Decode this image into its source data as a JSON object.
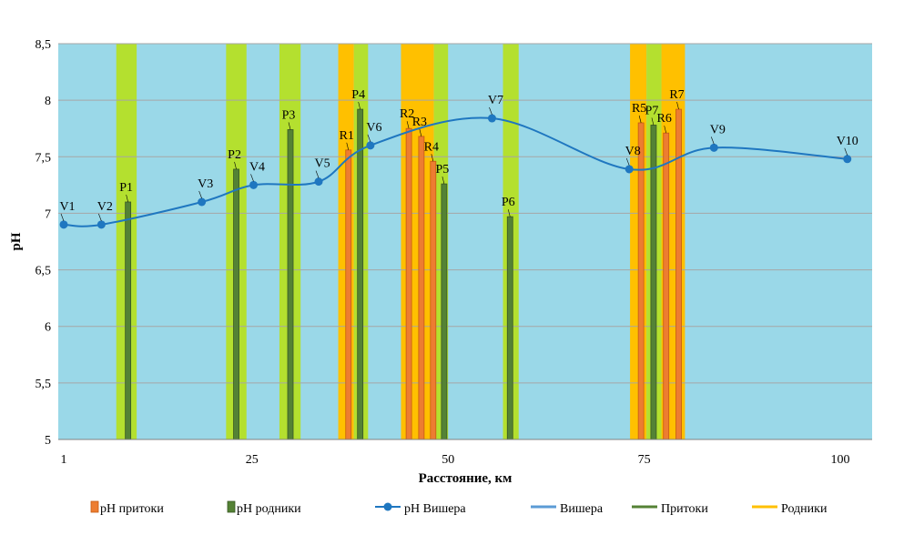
{
  "chart_data": {
    "type": "bar",
    "title": "",
    "xlabel": "Расстояние, км",
    "ylabel": "pH",
    "xlim": [
      1,
      100
    ],
    "ylim": [
      5,
      8.5
    ],
    "x_ticks": [
      1,
      25,
      50,
      75,
      100
    ],
    "x_tick_labels": [
      "1",
      "25",
      "50",
      "75",
      "100"
    ],
    "y_ticks": [
      5,
      5.5,
      6,
      6.5,
      7,
      7.5,
      8,
      8.5
    ],
    "y_tick_labels": [
      "5",
      "5,5",
      "6",
      "6,5",
      "7",
      "7,5",
      "8",
      "8,5"
    ],
    "grid": "horizontal",
    "legend_position": "bottom",
    "colors": {
      "background": "#9ad8e8",
      "grid": "#a6a6a6",
      "pritoki_bar": "#ed7d31",
      "pritoki_edge": "#c55a11",
      "rodniki_bar": "#548235",
      "rodniki_edge": "#385723",
      "vishera_line": "#1f77c0",
      "vishera_band": "#5b9bd5",
      "pritoki_band": "#b4e02f",
      "rodniki_band": "#ffc000"
    },
    "bands": [
      {
        "series": "Притоки",
        "x0": 7.7,
        "x1": 10.3
      },
      {
        "series": "Притоки",
        "x0": 21.7,
        "x1": 24.3
      },
      {
        "series": "Притоки",
        "x0": 28.5,
        "x1": 31.2
      },
      {
        "series": "Родники",
        "x0": 36.0,
        "x1": 38.0
      },
      {
        "series": "Притоки",
        "x0": 38.0,
        "x1": 39.8
      },
      {
        "series": "Родники",
        "x0": 44.0,
        "x1": 48.2
      },
      {
        "series": "Притоки",
        "x0": 48.2,
        "x1": 50.0
      },
      {
        "series": "Притоки",
        "x0": 57.0,
        "x1": 59.0
      },
      {
        "series": "Родники",
        "x0": 73.2,
        "x1": 75.3
      },
      {
        "series": "Притоки",
        "x0": 75.3,
        "x1": 77.2
      },
      {
        "series": "Родники",
        "x0": 77.2,
        "x1": 80.2
      }
    ],
    "series": [
      {
        "name": "pH притоки",
        "type": "bar",
        "points": [
          {
            "label": "R1",
            "x": 37.3,
            "y": 7.56
          },
          {
            "label": "R2",
            "x": 45.0,
            "y": 7.75
          },
          {
            "label": "R3",
            "x": 46.6,
            "y": 7.68
          },
          {
            "label": "R4",
            "x": 48.1,
            "y": 7.46
          },
          {
            "label": "R5",
            "x": 74.6,
            "y": 7.8
          },
          {
            "label": "R6",
            "x": 77.8,
            "y": 7.71
          },
          {
            "label": "R7",
            "x": 79.4,
            "y": 7.92
          }
        ]
      },
      {
        "name": "pH родники",
        "type": "bar",
        "points": [
          {
            "label": "P1",
            "x": 9.2,
            "y": 7.1
          },
          {
            "label": "P2",
            "x": 23.0,
            "y": 7.39
          },
          {
            "label": "P3",
            "x": 29.9,
            "y": 7.74
          },
          {
            "label": "P4",
            "x": 38.8,
            "y": 7.92
          },
          {
            "label": "P5",
            "x": 49.5,
            "y": 7.26
          },
          {
            "label": "P6",
            "x": 57.9,
            "y": 6.97
          },
          {
            "label": "P7",
            "x": 76.2,
            "y": 7.78
          }
        ]
      },
      {
        "name": "pH Вишера",
        "type": "line",
        "points": [
          {
            "label": "V1",
            "x": 1.0,
            "y": 6.9
          },
          {
            "label": "V2",
            "x": 5.8,
            "y": 6.9
          },
          {
            "label": "V3",
            "x": 18.6,
            "y": 7.1
          },
          {
            "label": "V4",
            "x": 25.2,
            "y": 7.25
          },
          {
            "label": "V5",
            "x": 33.5,
            "y": 7.28
          },
          {
            "label": "V6",
            "x": 40.1,
            "y": 7.6
          },
          {
            "label": "V7",
            "x": 55.6,
            "y": 7.84
          },
          {
            "label": "V8",
            "x": 73.1,
            "y": 7.39
          },
          {
            "label": "V9",
            "x": 83.9,
            "y": 7.58
          },
          {
            "label": "V10",
            "x": 100.9,
            "y": 7.48
          }
        ]
      }
    ],
    "legend": [
      {
        "label": "pH притоки",
        "kind": "bar-swatch",
        "color": "#ed7d31"
      },
      {
        "label": "pH родники",
        "kind": "bar-swatch",
        "color": "#548235"
      },
      {
        "label": "pH Вишера",
        "kind": "line-marker",
        "color": "#1f77c0"
      },
      {
        "label": "Вишера",
        "kind": "line",
        "color": "#5b9bd5"
      },
      {
        "label": "Притоки",
        "kind": "line",
        "color": "#548235"
      },
      {
        "label": "Родники",
        "kind": "line",
        "color": "#ffc000"
      }
    ]
  }
}
